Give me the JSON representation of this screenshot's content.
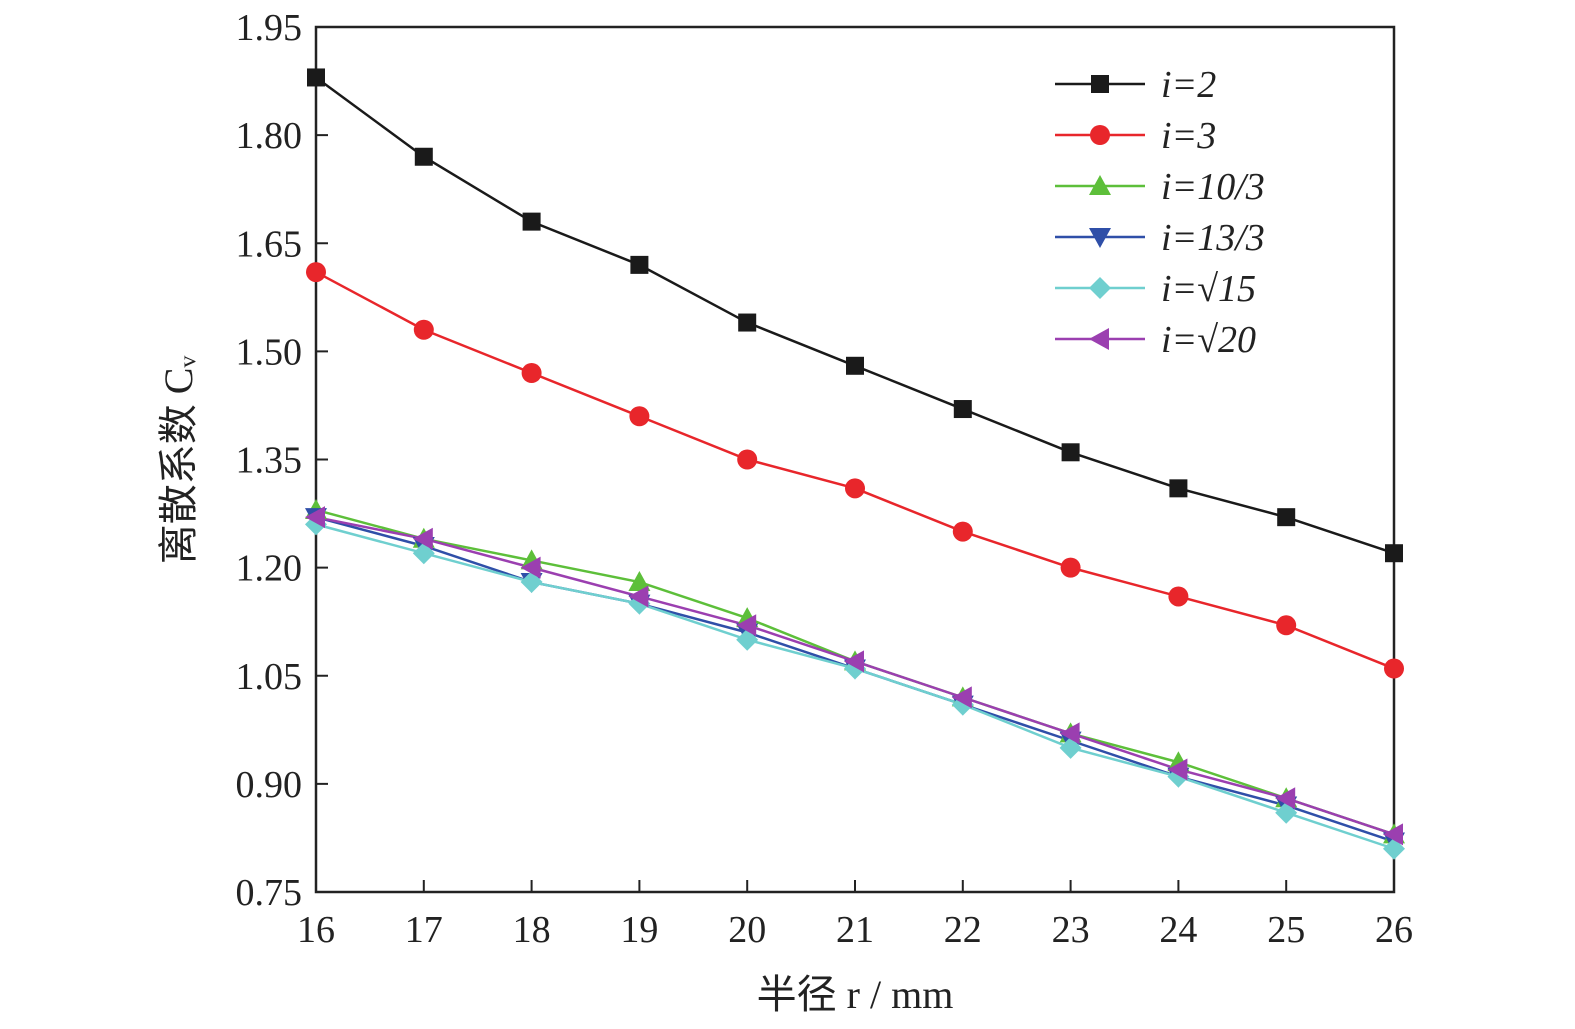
{
  "chart_data": {
    "type": "line",
    "xlabel": "半径 r / mm",
    "ylabel": "离散系数 Cᵥ",
    "xlim": [
      16,
      26
    ],
    "ylim": [
      0.75,
      1.95
    ],
    "x": [
      16,
      17,
      18,
      19,
      20,
      21,
      22,
      23,
      24,
      25,
      26
    ],
    "xticks": [
      "16",
      "17",
      "18",
      "19",
      "20",
      "21",
      "22",
      "23",
      "24",
      "25",
      "26"
    ],
    "yticks": [
      "0.75",
      "0.90",
      "1.05",
      "1.20",
      "1.35",
      "1.50",
      "1.65",
      "1.80",
      "1.95"
    ],
    "grid": false,
    "legend_position": "top-right",
    "series": [
      {
        "name": "i=2",
        "color": "#1a1a1a",
        "marker": "square",
        "values": [
          1.88,
          1.77,
          1.68,
          1.62,
          1.54,
          1.48,
          1.42,
          1.36,
          1.31,
          1.27,
          1.22
        ]
      },
      {
        "name": "i=3",
        "color": "#e8262b",
        "marker": "circle",
        "values": [
          1.61,
          1.53,
          1.47,
          1.41,
          1.35,
          1.31,
          1.25,
          1.2,
          1.16,
          1.12,
          1.06
        ]
      },
      {
        "name": "i=10/3",
        "color": "#5dbf3a",
        "marker": "triangle-up",
        "values": [
          1.28,
          1.24,
          1.21,
          1.18,
          1.13,
          1.07,
          1.02,
          0.97,
          0.93,
          0.88,
          0.83
        ]
      },
      {
        "name": "i=13/3",
        "color": "#2f4fa8",
        "marker": "triangle-down",
        "values": [
          1.27,
          1.23,
          1.18,
          1.15,
          1.11,
          1.06,
          1.01,
          0.96,
          0.91,
          0.87,
          0.82
        ]
      },
      {
        "name": "i=√15",
        "color": "#6fcfcf",
        "marker": "diamond",
        "values": [
          1.26,
          1.22,
          1.18,
          1.15,
          1.1,
          1.06,
          1.01,
          0.95,
          0.91,
          0.86,
          0.81
        ]
      },
      {
        "name": "i=√20",
        "color": "#9b3fb0",
        "marker": "triangle-left",
        "values": [
          1.27,
          1.24,
          1.2,
          1.16,
          1.12,
          1.07,
          1.02,
          0.97,
          0.92,
          0.88,
          0.83
        ]
      }
    ]
  }
}
